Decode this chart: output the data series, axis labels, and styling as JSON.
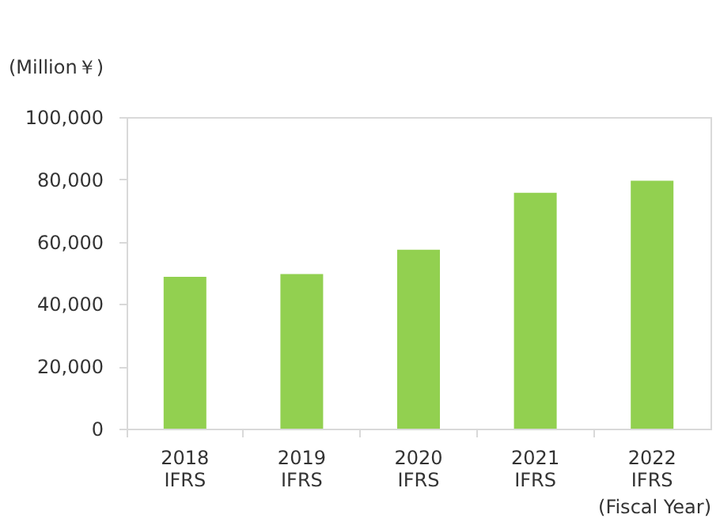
{
  "chart_data": {
    "type": "bar",
    "categories": [
      "2018 IFRS",
      "2019 IFRS",
      "2020 IFRS",
      "2021 IFRS",
      "2022 IFRS"
    ],
    "values": [
      48700,
      49600,
      57400,
      75700,
      79600
    ],
    "color": "#92d050",
    "ylabel": "(Million￥)",
    "xlabel": "(Fiscal Year)",
    "ylim": [
      0,
      100000
    ],
    "yticks": [
      0,
      {
        "value": 20000,
        "label": "20,000"
      },
      {
        "value": 40000,
        "label": "40,000"
      },
      {
        "value": 60000,
        "label": "60,000"
      },
      {
        "value": 80000,
        "label": "80,000"
      },
      {
        "value": 100000,
        "label": "100,000"
      }
    ],
    "grid": false
  }
}
